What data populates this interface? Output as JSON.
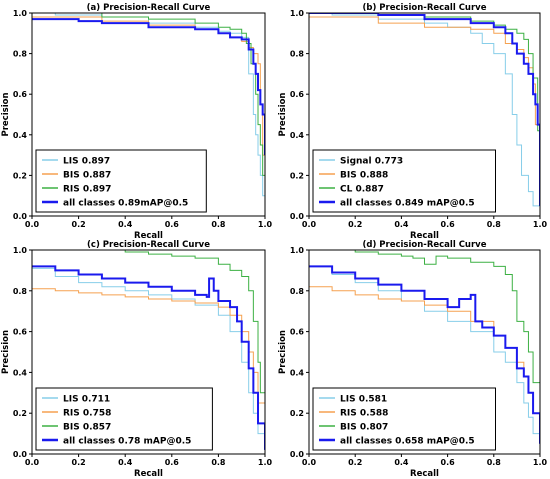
{
  "chart_data": [
    {
      "type": "line",
      "title": "(a) Precision-Recall Curve",
      "xlabel": "Recall",
      "ylabel": "Precision",
      "xlim": [
        0,
        1
      ],
      "ylim": [
        0,
        1
      ],
      "xticks": [
        "0.0",
        "0.2",
        "0.4",
        "0.6",
        "0.8",
        "1.0"
      ],
      "yticks": [
        "0.0",
        "0.2",
        "0.4",
        "0.6",
        "0.8",
        "1.0"
      ],
      "legend_position": "lower-left",
      "series": [
        {
          "name": "LIS 0.897",
          "color": "#87cee9",
          "width": 1,
          "x": [
            0,
            0.1,
            0.3,
            0.5,
            0.7,
            0.8,
            0.85,
            0.9,
            0.93,
            0.95,
            0.96,
            0.97,
            0.98,
            0.99,
            1.0
          ],
          "y": [
            1.0,
            0.99,
            0.98,
            0.95,
            0.93,
            0.91,
            0.9,
            0.88,
            0.7,
            0.5,
            0.4,
            0.3,
            0.2,
            0.1,
            0.0
          ]
        },
        {
          "name": "BIS 0.887",
          "color": "#f5a150",
          "width": 1,
          "x": [
            0,
            0.1,
            0.3,
            0.5,
            0.7,
            0.8,
            0.85,
            0.9,
            0.93,
            0.95,
            0.97,
            0.98,
            0.99,
            1.0
          ],
          "y": [
            0.98,
            0.98,
            0.96,
            0.94,
            0.92,
            0.9,
            0.88,
            0.86,
            0.83,
            0.8,
            0.75,
            0.55,
            0.3,
            0.0
          ]
        },
        {
          "name": "RIS 0.897",
          "color": "#3cb043",
          "width": 1,
          "x": [
            0,
            0.1,
            0.3,
            0.5,
            0.7,
            0.8,
            0.85,
            0.9,
            0.92,
            0.94,
            0.96,
            0.97,
            0.98,
            0.99,
            1.0
          ],
          "y": [
            1.0,
            1.0,
            0.98,
            0.97,
            0.95,
            0.93,
            0.92,
            0.9,
            0.85,
            0.75,
            0.6,
            0.45,
            0.35,
            0.2,
            0.0
          ]
        },
        {
          "name": "all classes 0.89mAP@0.5",
          "color": "#1a1aee",
          "width": 2,
          "x": [
            0,
            0.1,
            0.2,
            0.3,
            0.5,
            0.7,
            0.8,
            0.85,
            0.9,
            0.93,
            0.95,
            0.96,
            0.97,
            0.98,
            0.99,
            1.0
          ],
          "y": [
            0.97,
            0.97,
            0.96,
            0.95,
            0.93,
            0.92,
            0.9,
            0.88,
            0.87,
            0.82,
            0.75,
            0.7,
            0.62,
            0.55,
            0.5,
            0.3
          ]
        }
      ]
    },
    {
      "type": "line",
      "title": "(b) Precision-Recall Curve",
      "xlabel": "Recall",
      "ylabel": "Precision",
      "xlim": [
        0,
        1
      ],
      "ylim": [
        0,
        1
      ],
      "xticks": [
        "0.0",
        "0.2",
        "0.4",
        "0.6",
        "0.8",
        "1.0"
      ],
      "yticks": [
        "0.0",
        "0.2",
        "0.4",
        "0.6",
        "0.8",
        "1.0"
      ],
      "legend_position": "lower-left",
      "series": [
        {
          "name": "Signal 0.773",
          "color": "#87cee9",
          "width": 1,
          "x": [
            0,
            0.1,
            0.3,
            0.5,
            0.6,
            0.7,
            0.75,
            0.8,
            0.85,
            0.88,
            0.9,
            0.92,
            0.95,
            0.97,
            1.0
          ],
          "y": [
            1.0,
            0.99,
            0.97,
            0.95,
            0.93,
            0.9,
            0.85,
            0.8,
            0.7,
            0.5,
            0.35,
            0.2,
            0.12,
            0.05,
            0.0
          ]
        },
        {
          "name": "BIS 0.888",
          "color": "#f5a150",
          "width": 1,
          "x": [
            0,
            0.1,
            0.2,
            0.3,
            0.5,
            0.7,
            0.8,
            0.85,
            0.9,
            0.93,
            0.95,
            0.97,
            0.98,
            1.0
          ],
          "y": [
            0.98,
            0.98,
            0.98,
            0.95,
            0.93,
            0.92,
            0.9,
            0.85,
            0.82,
            0.78,
            0.73,
            0.65,
            0.45,
            0.0
          ]
        },
        {
          "name": "CL 0.887",
          "color": "#3cb043",
          "width": 1,
          "x": [
            0,
            0.1,
            0.3,
            0.5,
            0.7,
            0.8,
            0.85,
            0.9,
            0.93,
            0.95,
            0.97,
            0.99,
            1.0
          ],
          "y": [
            1.0,
            1.0,
            0.99,
            0.98,
            0.96,
            0.94,
            0.92,
            0.9,
            0.87,
            0.8,
            0.68,
            0.42,
            0.3
          ]
        },
        {
          "name": "all classes 0.849 mAP@0.5",
          "color": "#1a1aee",
          "width": 2,
          "x": [
            0,
            0.1,
            0.3,
            0.5,
            0.7,
            0.8,
            0.85,
            0.88,
            0.9,
            0.93,
            0.95,
            0.97,
            0.98,
            0.99,
            1.0
          ],
          "y": [
            1.0,
            1.0,
            0.99,
            0.97,
            0.95,
            0.93,
            0.9,
            0.85,
            0.8,
            0.75,
            0.7,
            0.6,
            0.55,
            0.45,
            0.05
          ]
        }
      ]
    },
    {
      "type": "line",
      "title": "(c) Precision-Recall Curve",
      "xlabel": "Recall",
      "ylabel": "Precision",
      "xlim": [
        0,
        1
      ],
      "ylim": [
        0,
        1
      ],
      "xticks": [
        "0.0",
        "0.2",
        "0.4",
        "0.6",
        "0.8",
        "1.0"
      ],
      "yticks": [
        "0.0",
        "0.2",
        "0.4",
        "0.6",
        "0.8",
        "1.0"
      ],
      "legend_position": "lower-left",
      "series": [
        {
          "name": "LIS  0.711",
          "color": "#87cee9",
          "width": 1,
          "x": [
            0,
            0.1,
            0.2,
            0.3,
            0.4,
            0.5,
            0.6,
            0.7,
            0.8,
            0.85,
            0.9,
            0.93,
            0.95,
            0.97,
            1.0
          ],
          "y": [
            0.91,
            0.87,
            0.84,
            0.82,
            0.8,
            0.78,
            0.76,
            0.73,
            0.68,
            0.6,
            0.45,
            0.3,
            0.2,
            0.1,
            0.02
          ]
        },
        {
          "name": "RIS  0.758",
          "color": "#f5a150",
          "width": 1,
          "x": [
            0,
            0.1,
            0.2,
            0.3,
            0.4,
            0.5,
            0.6,
            0.7,
            0.8,
            0.85,
            0.9,
            0.93,
            0.95,
            0.97,
            1.0
          ],
          "y": [
            0.81,
            0.8,
            0.79,
            0.78,
            0.77,
            0.76,
            0.75,
            0.74,
            0.72,
            0.68,
            0.6,
            0.5,
            0.4,
            0.25,
            0.03
          ]
        },
        {
          "name": "BIS  0.857",
          "color": "#3cb043",
          "width": 1,
          "x": [
            0,
            0.1,
            0.2,
            0.3,
            0.4,
            0.5,
            0.6,
            0.7,
            0.8,
            0.85,
            0.9,
            0.93,
            0.95,
            0.97,
            0.98,
            1.0
          ],
          "y": [
            1.0,
            1.0,
            1.0,
            1.0,
            0.99,
            0.98,
            0.97,
            0.96,
            0.93,
            0.9,
            0.87,
            0.8,
            0.65,
            0.45,
            0.3,
            0.05
          ]
        },
        {
          "name": "all classes 0.78 mAP@0.5",
          "color": "#1a1aee",
          "width": 2,
          "x": [
            0,
            0.1,
            0.2,
            0.3,
            0.4,
            0.5,
            0.6,
            0.7,
            0.75,
            0.76,
            0.78,
            0.8,
            0.85,
            0.88,
            0.9,
            0.93,
            0.95,
            0.97,
            1.0
          ],
          "y": [
            0.92,
            0.9,
            0.88,
            0.86,
            0.84,
            0.82,
            0.8,
            0.78,
            0.77,
            0.86,
            0.8,
            0.75,
            0.72,
            0.65,
            0.55,
            0.42,
            0.3,
            0.15,
            0.02
          ]
        }
      ]
    },
    {
      "type": "line",
      "title": "(d) Precision-Recall Curve",
      "xlabel": "Recall",
      "ylabel": "Precision",
      "xlim": [
        0,
        1
      ],
      "ylim": [
        0,
        1
      ],
      "xticks": [
        "0.0",
        "0.2",
        "0.4",
        "0.6",
        "0.8",
        "1.0"
      ],
      "yticks": [
        "0.0",
        "0.2",
        "0.4",
        "0.6",
        "0.8",
        "1.0"
      ],
      "legend_position": "lower-left",
      "series": [
        {
          "name": "LIS  0.581",
          "color": "#87cee9",
          "width": 1,
          "x": [
            0,
            0.1,
            0.2,
            0.3,
            0.4,
            0.5,
            0.6,
            0.7,
            0.8,
            0.85,
            0.9,
            0.93,
            0.95,
            0.97,
            1.0
          ],
          "y": [
            0.92,
            0.88,
            0.84,
            0.8,
            0.75,
            0.7,
            0.65,
            0.6,
            0.5,
            0.45,
            0.35,
            0.25,
            0.18,
            0.1,
            0.05
          ]
        },
        {
          "name": "RIS  0.588",
          "color": "#f5a150",
          "width": 1,
          "x": [
            0,
            0.1,
            0.2,
            0.3,
            0.4,
            0.5,
            0.6,
            0.7,
            0.8,
            0.85,
            0.9,
            0.93,
            0.95,
            0.97,
            1.0
          ],
          "y": [
            0.82,
            0.8,
            0.78,
            0.76,
            0.75,
            0.73,
            0.7,
            0.65,
            0.58,
            0.52,
            0.45,
            0.38,
            0.3,
            0.2,
            0.08
          ]
        },
        {
          "name": "BIS  0.807",
          "color": "#3cb043",
          "width": 1,
          "x": [
            0,
            0.1,
            0.2,
            0.3,
            0.4,
            0.45,
            0.5,
            0.55,
            0.6,
            0.7,
            0.8,
            0.85,
            0.88,
            0.9,
            0.93,
            0.95,
            0.97,
            1.0
          ],
          "y": [
            1.0,
            1.0,
            0.99,
            0.98,
            0.97,
            0.96,
            0.93,
            0.97,
            0.96,
            0.94,
            0.92,
            0.88,
            0.8,
            0.65,
            0.6,
            0.5,
            0.35,
            0.15
          ]
        },
        {
          "name": "all classes 0.658 mAP@0.5",
          "color": "#1a1aee",
          "width": 2,
          "x": [
            0,
            0.1,
            0.2,
            0.3,
            0.4,
            0.5,
            0.6,
            0.65,
            0.7,
            0.72,
            0.75,
            0.8,
            0.85,
            0.9,
            0.93,
            0.95,
            0.97,
            1.0
          ],
          "y": [
            0.92,
            0.89,
            0.86,
            0.83,
            0.8,
            0.76,
            0.72,
            0.76,
            0.78,
            0.65,
            0.62,
            0.58,
            0.52,
            0.42,
            0.38,
            0.3,
            0.2,
            0.05
          ]
        }
      ]
    }
  ]
}
